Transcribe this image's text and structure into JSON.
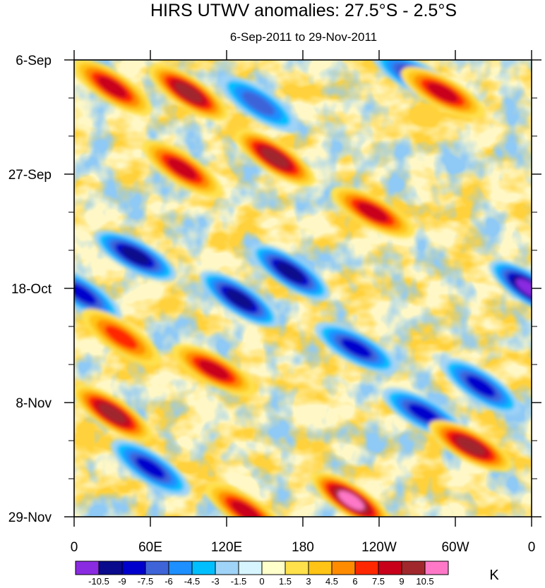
{
  "chart_data": {
    "type": "heatmap",
    "title": "HIRS UTWV anomalies: 27.5°S - 2.5°S",
    "subtitle": "6-Sep-2011 to 29-Nov-2011",
    "x_axis": {
      "ticks": [
        {
          "lon": 0,
          "label": "0"
        },
        {
          "lon": 60,
          "label": "60E"
        },
        {
          "lon": 120,
          "label": "120E"
        },
        {
          "lon": 180,
          "label": "180"
        },
        {
          "lon": 240,
          "label": "120W"
        },
        {
          "lon": 300,
          "label": "60W"
        },
        {
          "lon": 360,
          "label": "0"
        }
      ],
      "range": [
        0,
        360
      ]
    },
    "y_axis": {
      "ticks": [
        {
          "day": 0,
          "label": "6-Sep"
        },
        {
          "day": 21,
          "label": "27-Sep"
        },
        {
          "day": 42,
          "label": "18-Oct"
        },
        {
          "day": 63,
          "label": "8-Nov"
        },
        {
          "day": 84,
          "label": "29-Nov"
        }
      ],
      "minor_tick_days": 7,
      "range": [
        0,
        84
      ]
    },
    "colorbar": {
      "unit": "K",
      "levels": [
        -10.5,
        -9,
        -7.5,
        -6,
        -4.5,
        -3,
        -1.5,
        0,
        1.5,
        3,
        4.5,
        6,
        7.5,
        9,
        10.5
      ],
      "level_labels": [
        "-10.5",
        "-9",
        "-7.5",
        "-6",
        "-4.5",
        "-3",
        "-1.5",
        "0",
        "1.5",
        "3",
        "4.5",
        "6",
        "7.5",
        "9",
        "10.5"
      ],
      "colors": [
        "#8a2be2",
        "#0a0a8c",
        "#0000cd",
        "#3e64d8",
        "#1e8fff",
        "#00bfff",
        "#9fd3f7",
        "#d7f5ff",
        "#ffffcc",
        "#ffe14c",
        "#ffc415",
        "#ff8c00",
        "#ff2800",
        "#c8001a",
        "#a0282d",
        "#ff78c8"
      ]
    },
    "anomaly_features": [
      {
        "lon": 48,
        "day": 36,
        "value": -9
      },
      {
        "lon": 130,
        "day": 44,
        "value": -9
      },
      {
        "lon": 170,
        "day": 39,
        "value": -9
      },
      {
        "lon": 222,
        "day": 53,
        "value": -7.5
      },
      {
        "lon": 358,
        "day": 42,
        "value": -10.5
      },
      {
        "lon": 6,
        "day": 43,
        "value": -7.5
      },
      {
        "lon": 268,
        "day": 3,
        "value": -7.5
      },
      {
        "lon": 145,
        "day": 8,
        "value": -6
      },
      {
        "lon": 60,
        "day": 75,
        "value": -7.5
      },
      {
        "lon": 275,
        "day": 65,
        "value": -7.5
      },
      {
        "lon": 320,
        "day": 60,
        "value": -7.5
      },
      {
        "lon": 158,
        "day": 18,
        "value": 9
      },
      {
        "lon": 235,
        "day": 28,
        "value": 7.5
      },
      {
        "lon": 90,
        "day": 6,
        "value": 9
      },
      {
        "lon": 30,
        "day": 5,
        "value": 7.5
      },
      {
        "lon": 290,
        "day": 6,
        "value": 7.5
      },
      {
        "lon": 85,
        "day": 20,
        "value": 7.5
      },
      {
        "lon": 30,
        "day": 65,
        "value": 9
      },
      {
        "lon": 110,
        "day": 57,
        "value": 7.5
      },
      {
        "lon": 218,
        "day": 81,
        "value": 10.5
      },
      {
        "lon": 135,
        "day": 83,
        "value": 7.5
      },
      {
        "lon": 312,
        "day": 71,
        "value": 9
      },
      {
        "lon": 37,
        "day": 51,
        "value": 6
      }
    ]
  }
}
